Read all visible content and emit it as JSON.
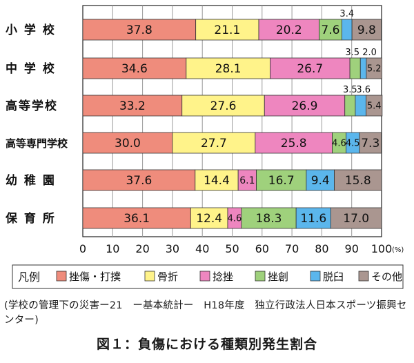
{
  "chart_data": {
    "type": "bar",
    "stacked": true,
    "orientation": "horizontal",
    "percent_axis": true,
    "categories": [
      "小 学 校",
      "中 学 校",
      "高等学校",
      "高等専門学校",
      "幼 稚 園",
      "保 育 所"
    ],
    "series": [
      {
        "name": "挫傷・打撲",
        "color": "#ef8c7c",
        "values": [
          37.8,
          34.6,
          33.2,
          30.0,
          37.6,
          36.1
        ]
      },
      {
        "name": "骨折",
        "color": "#fff38a",
        "values": [
          21.1,
          28.1,
          27.6,
          27.7,
          14.4,
          12.4
        ]
      },
      {
        "name": "捻挫",
        "color": "#ee86bf",
        "values": [
          20.2,
          26.7,
          26.9,
          25.8,
          6.1,
          4.6
        ]
      },
      {
        "name": "挫創",
        "color": "#9fd17c",
        "values": [
          7.6,
          3.5,
          3.5,
          4.6,
          16.7,
          18.3
        ]
      },
      {
        "name": "脱臼",
        "color": "#5bb6ec",
        "values": [
          3.4,
          2.0,
          3.6,
          4.5,
          9.4,
          11.6
        ]
      },
      {
        "name": "その他",
        "color": "#aa9690",
        "values": [
          9.8,
          5.2,
          5.4,
          7.3,
          15.8,
          17.0
        ]
      }
    ],
    "value_labels": [
      [
        "37.8",
        "21.1",
        "20.2",
        "7.6",
        "3.4",
        "9.8"
      ],
      [
        "34.6",
        "28.1",
        "26.7",
        "3.5",
        "2.0",
        "5.2"
      ],
      [
        "33.2",
        "27.6",
        "26.9",
        "3.5",
        "3.6",
        "5.4"
      ],
      [
        "30.0",
        "27.7",
        "25.8",
        "4.6",
        "4.5",
        "7.3"
      ],
      [
        "37.6",
        "14.4",
        "6.1",
        "16.7",
        "9.4",
        "15.8"
      ],
      [
        "36.1",
        "12.4",
        "4.6",
        "18.3",
        "11.6",
        "17.0"
      ]
    ],
    "xlim": [
      0,
      100
    ],
    "x_ticks": [
      "0",
      "10",
      "20",
      "30",
      "40",
      "50",
      "60",
      "70",
      "80",
      "90",
      "100"
    ],
    "x_unit": "(%)",
    "legend_title": "凡例",
    "legend_position": "bottom"
  },
  "source_note": "(学校の管理下の災害ー21　ー基本統計ー　H18年度　独立行政法人日本スポーツ振興センター)",
  "figure_caption": "図１：負傷における種類別発生割合"
}
